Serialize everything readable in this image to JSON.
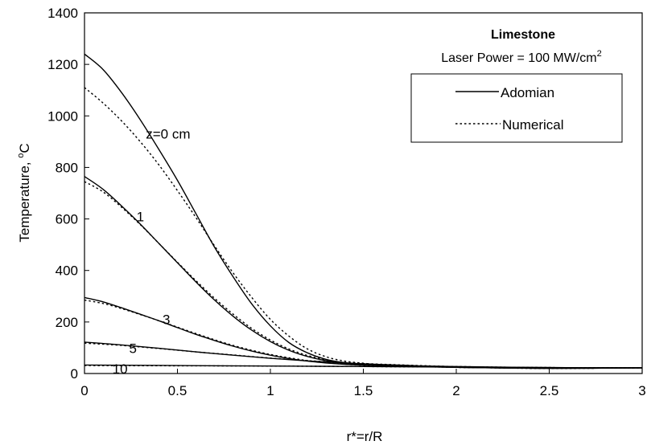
{
  "chart_data": {
    "type": "line",
    "title": "",
    "xlabel": "r*=r/R",
    "ylabel": "Temperature, °C",
    "xlim": [
      0,
      3
    ],
    "ylim": [
      0,
      1400
    ],
    "xticks": [
      0,
      0.5,
      1,
      1.5,
      2,
      2.5,
      3
    ],
    "yticks": [
      0,
      200,
      400,
      600,
      800,
      1000,
      1200,
      1400
    ],
    "xtick_labels": [
      "0",
      "0.5",
      "1",
      "1.5",
      "2",
      "2.5",
      "3"
    ],
    "ytick_labels": [
      "0",
      "200",
      "400",
      "600",
      "800",
      "1000",
      "1200",
      "1400"
    ],
    "grid": false,
    "legend": {
      "title": "Limestone",
      "subtitle": "Laser Power = 100 MW/cm",
      "subtitle_sup": "2",
      "placement": "top-right",
      "entries": [
        {
          "label": "Adomian",
          "style": "solid"
        },
        {
          "label": "Numerical",
          "style": "dotted"
        }
      ]
    },
    "curve_labels": [
      {
        "text": "z=0 cm",
        "x": 0.33,
        "y": 930
      },
      {
        "text": "1",
        "x": 0.28,
        "y": 610
      },
      {
        "text": "3",
        "x": 0.42,
        "y": 210
      },
      {
        "text": "5",
        "x": 0.24,
        "y": 98
      },
      {
        "text": "10",
        "x": 0.15,
        "y": 18
      }
    ],
    "series": [
      {
        "name": "z=0 cm",
        "method": "Adomian",
        "x": [
          0,
          0.1,
          0.2,
          0.3,
          0.4,
          0.5,
          0.6,
          0.7,
          0.8,
          0.9,
          1.0,
          1.1,
          1.2,
          1.3,
          1.4,
          1.5,
          1.6,
          1.8,
          2.0,
          2.2,
          2.5,
          3.0
        ],
        "y": [
          1240,
          1180,
          1090,
          985,
          870,
          750,
          620,
          490,
          375,
          270,
          185,
          120,
          80,
          55,
          42,
          36,
          32,
          28,
          24,
          22,
          20,
          22
        ]
      },
      {
        "name": "z=0 cm",
        "method": "Numerical",
        "x": [
          0,
          0.1,
          0.2,
          0.3,
          0.4,
          0.5,
          0.6,
          0.7,
          0.8,
          0.9,
          1.0,
          1.1,
          1.2,
          1.3,
          1.4,
          1.5,
          1.6,
          1.8,
          2.0,
          2.2,
          2.5,
          3.0
        ],
        "y": [
          1110,
          1050,
          980,
          900,
          810,
          710,
          605,
          495,
          390,
          295,
          210,
          145,
          95,
          65,
          48,
          40,
          34,
          28,
          24,
          22,
          20,
          22
        ]
      },
      {
        "name": "1",
        "method": "Adomian",
        "x": [
          0,
          0.1,
          0.2,
          0.3,
          0.4,
          0.5,
          0.6,
          0.7,
          0.8,
          0.9,
          1.0,
          1.1,
          1.2,
          1.3,
          1.4,
          1.5,
          1.6,
          1.8,
          2.0,
          2.2,
          2.5,
          3.0
        ],
        "y": [
          765,
          715,
          650,
          580,
          505,
          430,
          355,
          285,
          222,
          168,
          124,
          90,
          66,
          50,
          40,
          34,
          31,
          27,
          24,
          22,
          20,
          22
        ]
      },
      {
        "name": "1",
        "method": "Numerical",
        "x": [
          0,
          0.1,
          0.2,
          0.3,
          0.4,
          0.5,
          0.6,
          0.7,
          0.8,
          0.9,
          1.0,
          1.1,
          1.2,
          1.3,
          1.4,
          1.5,
          1.6,
          1.8,
          2.0,
          2.2,
          2.5,
          3.0
        ],
        "y": [
          745,
          705,
          645,
          578,
          505,
          432,
          360,
          292,
          230,
          175,
          130,
          95,
          70,
          53,
          42,
          35,
          31,
          27,
          24,
          22,
          20,
          22
        ]
      },
      {
        "name": "3",
        "method": "Adomian",
        "x": [
          0,
          0.1,
          0.2,
          0.3,
          0.4,
          0.5,
          0.6,
          0.7,
          0.8,
          0.9,
          1.0,
          1.1,
          1.2,
          1.3,
          1.4,
          1.5,
          1.6,
          1.8,
          2.0,
          2.2,
          2.5,
          3.0
        ],
        "y": [
          295,
          278,
          255,
          230,
          205,
          178,
          152,
          128,
          106,
          87,
          71,
          58,
          48,
          41,
          36,
          32,
          30,
          27,
          25,
          23,
          21,
          22
        ]
      },
      {
        "name": "3",
        "method": "Numerical",
        "x": [
          0,
          0.1,
          0.2,
          0.3,
          0.4,
          0.5,
          0.6,
          0.7,
          0.8,
          0.9,
          1.0,
          1.1,
          1.2,
          1.3,
          1.4,
          1.5,
          1.6,
          1.8,
          2.0,
          2.2,
          2.5,
          3.0
        ],
        "y": [
          285,
          272,
          252,
          229,
          205,
          180,
          155,
          131,
          109,
          90,
          74,
          61,
          50,
          42,
          36,
          32,
          30,
          27,
          25,
          23,
          21,
          22
        ]
      },
      {
        "name": "5",
        "method": "Adomian",
        "x": [
          0,
          0.2,
          0.4,
          0.6,
          0.8,
          1.0,
          1.2,
          1.4,
          1.6,
          1.8,
          2.0,
          2.5,
          3.0
        ],
        "y": [
          122,
          111,
          98,
          84,
          71,
          59,
          49,
          41,
          35,
          30,
          27,
          23,
          22
        ]
      },
      {
        "name": "5",
        "method": "Numerical",
        "x": [
          0,
          0.2,
          0.4,
          0.6,
          0.8,
          1.0,
          1.2,
          1.4,
          1.6,
          1.8,
          2.0,
          2.5,
          3.0
        ],
        "y": [
          118,
          109,
          97,
          84,
          72,
          60,
          50,
          42,
          36,
          31,
          27,
          23,
          22
        ]
      },
      {
        "name": "10",
        "method": "Adomian",
        "x": [
          0,
          0.5,
          1.0,
          1.5,
          2.0,
          2.5,
          3.0
        ],
        "y": [
          33,
          31,
          29,
          27,
          25,
          23,
          22
        ]
      },
      {
        "name": "10",
        "method": "Numerical",
        "x": [
          0,
          0.5,
          1.0,
          1.5,
          2.0,
          2.5,
          3.0
        ],
        "y": [
          31,
          30,
          29,
          27,
          25,
          23,
          22
        ]
      }
    ]
  }
}
